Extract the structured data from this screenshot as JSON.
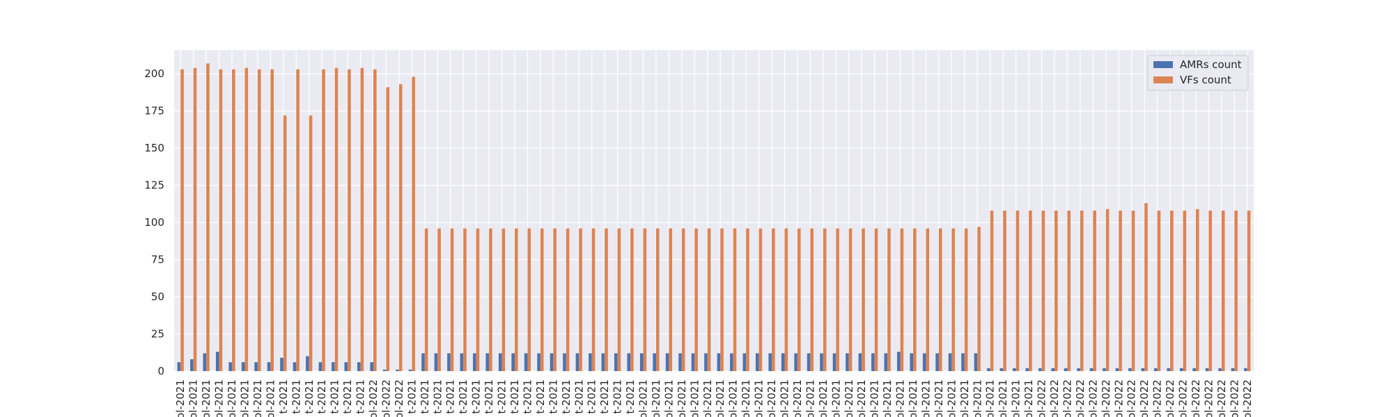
{
  "chart_data": {
    "type": "bar",
    "title": "",
    "xlabel": "",
    "ylabel": "",
    "ylim": [
      0,
      216
    ],
    "y_ticks": [
      0,
      25,
      50,
      75,
      100,
      125,
      150,
      175,
      200
    ],
    "grid": true,
    "legend_position": "top-right",
    "categories": [
      "ol-2021",
      "ol-2021",
      "ol-2021",
      "ol-2021",
      "ol-2021",
      "ol-2021",
      "ol-2021",
      "ol-2021",
      "t-2021",
      "t-2021",
      "t-2021",
      "t-2021",
      "t-2021",
      "t-2021",
      "t-2021",
      "ol-2022",
      "ol-2022",
      "ol-2022",
      "t-2021",
      "t-2021",
      "t-2021",
      "t-2021",
      "t-2021",
      "t-2021",
      "t-2021",
      "t-2021",
      "t-2021",
      "t-2021",
      "t-2021",
      "t-2021",
      "t-2021",
      "t-2021",
      "t-2021",
      "t-2021",
      "t-2021",
      "t-2021",
      "ol-2021",
      "ol-2021",
      "ol-2021",
      "ol-2021",
      "ol-2021",
      "ol-2021",
      "ol-2021",
      "ol-2021",
      "ol-2021",
      "ol-2021",
      "ol-2021",
      "ol-2021",
      "ol-2021",
      "ol-2021",
      "ol-2021",
      "ol-2021",
      "ol-2021",
      "ol-2021",
      "ol-2021",
      "ol-2021",
      "ol-2021",
      "ol-2021",
      "ol-2021",
      "ol-2021",
      "ol-2021",
      "ol-2021",
      "ol-2021",
      "ol-2021",
      "ol-2021",
      "ol-2021",
      "ol-2021",
      "ol-2022",
      "ol-2022",
      "ol-2022",
      "ol-2022",
      "ol-2022",
      "ol-2022",
      "ol-2022",
      "ol-2022",
      "ol-2022",
      "ol-2022",
      "ol-2022",
      "ol-2022",
      "ol-2022",
      "ol-2022",
      "ol-2022",
      "ol-2022",
      "ol-2022"
    ],
    "series": [
      {
        "name": "AMRs count",
        "color": "#4c72b0",
        "values": [
          6,
          8,
          12,
          13,
          6,
          6,
          6,
          6,
          9,
          6,
          10,
          6,
          6,
          6,
          6,
          6,
          1,
          1,
          1,
          12,
          12,
          12,
          12,
          12,
          12,
          12,
          12,
          12,
          12,
          12,
          12,
          12,
          12,
          12,
          12,
          12,
          12,
          12,
          12,
          12,
          12,
          12,
          12,
          12,
          12,
          12,
          12,
          12,
          12,
          12,
          12,
          12,
          12,
          12,
          12,
          12,
          13,
          12,
          12,
          12,
          12,
          12,
          12,
          2,
          2,
          2,
          2,
          2,
          2,
          2,
          2,
          2,
          2,
          2,
          2,
          2,
          2,
          2,
          2,
          2,
          2,
          2,
          2,
          2
        ]
      },
      {
        "name": "VFs count",
        "color": "#dd8452",
        "values": [
          203,
          204,
          207,
          203,
          203,
          204,
          203,
          203,
          172,
          203,
          172,
          203,
          204,
          203,
          204,
          203,
          191,
          193,
          198,
          96,
          96,
          96,
          96,
          96,
          96,
          96,
          96,
          96,
          96,
          96,
          96,
          96,
          96,
          96,
          96,
          96,
          96,
          96,
          96,
          96,
          96,
          96,
          96,
          96,
          96,
          96,
          96,
          96,
          96,
          96,
          96,
          96,
          96,
          96,
          96,
          96,
          96,
          96,
          96,
          96,
          96,
          96,
          97,
          108,
          108,
          108,
          108,
          108,
          108,
          108,
          108,
          108,
          109,
          108,
          108,
          113,
          108,
          108,
          108,
          109,
          108,
          108,
          108,
          108
        ]
      }
    ]
  }
}
